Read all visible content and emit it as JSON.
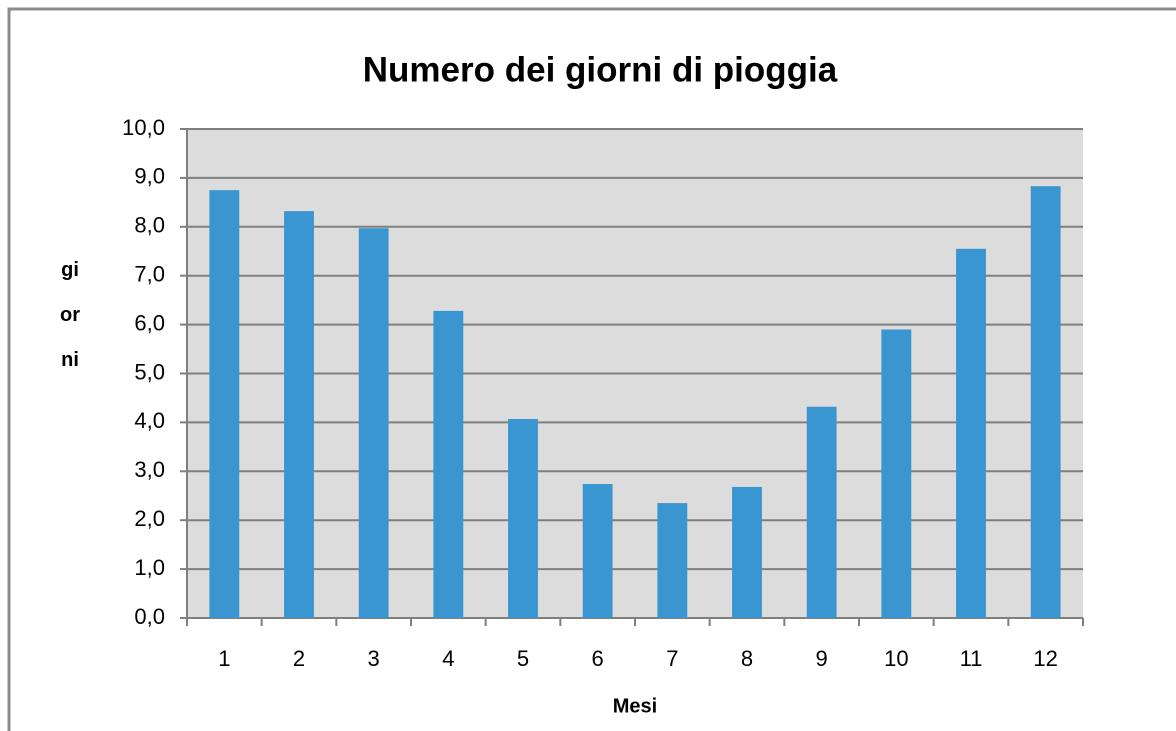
{
  "chart_data": {
    "type": "bar",
    "title": "Numero dei giorni di pioggia",
    "x_label": "Mesi",
    "y_label": "giorni",
    "categories": [
      "1",
      "2",
      "3",
      "4",
      "5",
      "6",
      "7",
      "8",
      "9",
      "10",
      "11",
      "12"
    ],
    "values": [
      8.75,
      8.32,
      7.97,
      6.28,
      4.07,
      2.74,
      2.35,
      2.68,
      4.32,
      5.9,
      7.55,
      8.83
    ],
    "color": "#3a96d0",
    "ylim": [
      0,
      10
    ],
    "yticks": [
      {
        "value": 0,
        "label": "0,0"
      },
      {
        "value": 1,
        "label": "1,0"
      },
      {
        "value": 2,
        "label": "2,0"
      },
      {
        "value": 3,
        "label": "3,0"
      },
      {
        "value": 4,
        "label": "4,0"
      },
      {
        "value": 5,
        "label": "5,0"
      },
      {
        "value": 6,
        "label": "6,0"
      },
      {
        "value": 7,
        "label": "7,0"
      },
      {
        "value": 8,
        "label": "8,0"
      },
      {
        "value": 9,
        "label": "9,0"
      },
      {
        "value": 10,
        "label": "10,0"
      }
    ],
    "grid": true
  }
}
